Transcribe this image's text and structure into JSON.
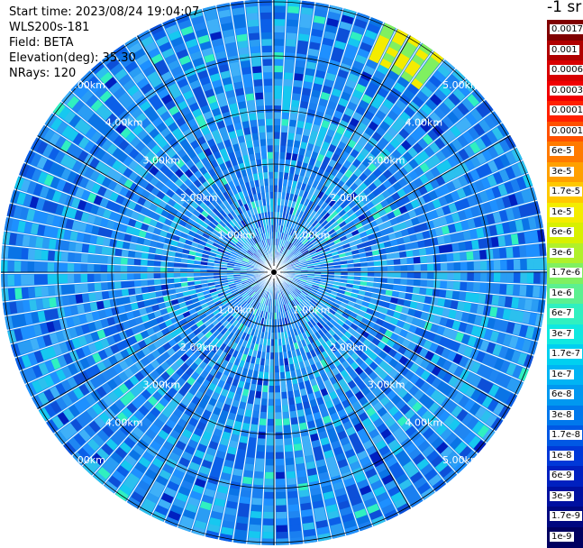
{
  "info": {
    "start_time": "Start time: 2023/08/24 19:04:07",
    "instrument": "WLS200s-181",
    "field": "Field: BETA",
    "elevation": "Elevation(deg): 35.30",
    "nrays": "NRays: 120"
  },
  "colorbar": {
    "unit": "-1 sr",
    "levels": [
      {
        "label": "0.0017",
        "color": "#800000"
      },
      {
        "label": "0.001",
        "color": "#b00000"
      },
      {
        "label": "0.0006",
        "color": "#d80000"
      },
      {
        "label": "0.0003",
        "color": "#f00000"
      },
      {
        "label": "0.00017",
        "color": "#ff2000"
      },
      {
        "label": "0.0001",
        "color": "#ff5000"
      },
      {
        "label": "6e-5",
        "color": "#ff7a00"
      },
      {
        "label": "3e-5",
        "color": "#ffa000"
      },
      {
        "label": "1.7e-5",
        "color": "#ffc800"
      },
      {
        "label": "1e-5",
        "color": "#f4ec00"
      },
      {
        "label": "6e-6",
        "color": "#d8f000"
      },
      {
        "label": "3e-6",
        "color": "#b0f02a"
      },
      {
        "label": "1.7e-6",
        "color": "#80f060"
      },
      {
        "label": "1e-6",
        "color": "#5cf090"
      },
      {
        "label": "6e-7",
        "color": "#30f0c0"
      },
      {
        "label": "3e-7",
        "color": "#10e8e0"
      },
      {
        "label": "1.7e-7",
        "color": "#00d0f0"
      },
      {
        "label": "1e-7",
        "color": "#00b4f4"
      },
      {
        "label": "6e-8",
        "color": "#0098f0"
      },
      {
        "label": "3e-8",
        "color": "#0078ec"
      },
      {
        "label": "1.7e-8",
        "color": "#0058e4"
      },
      {
        "label": "1e-8",
        "color": "#0038d8"
      },
      {
        "label": "6e-9",
        "color": "#0020c0"
      },
      {
        "label": "3e-9",
        "color": "#0010a0"
      },
      {
        "label": "1.7e-9",
        "color": "#000880"
      },
      {
        "label": "1e-9",
        "color": "#000060"
      }
    ]
  },
  "range_rings": [
    "1.00km",
    "2.00km",
    "3.00km",
    "4.00km",
    "5.00km"
  ]
}
